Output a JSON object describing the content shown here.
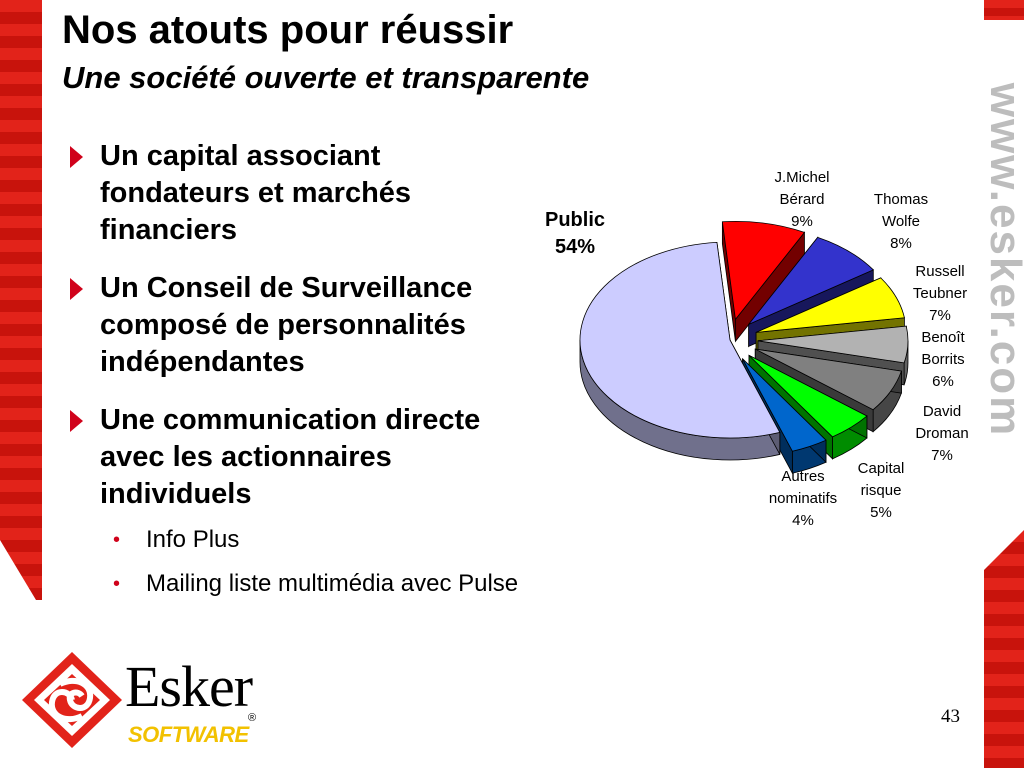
{
  "header": {
    "title": "Nos atouts pour réussir",
    "subtitle": "Une société ouverte et transparente"
  },
  "decoration": {
    "vertical_url": "www.esker.com"
  },
  "bullets": [
    {
      "lines": [
        "Un capital associant",
        "fondateurs et marchés",
        "financiers"
      ]
    },
    {
      "lines": [
        "Un Conseil de Surveillance",
        "composé de personnalités",
        "indépendantes"
      ]
    },
    {
      "lines": [
        "Une communication directe",
        "avec les actionnaires",
        "individuels"
      ]
    }
  ],
  "sub_bullets": [
    "Info Plus",
    "Mailing liste multimédia avec Pulse"
  ],
  "footer": {
    "slide_number": "43",
    "logo_name": "Esker",
    "logo_tagline": "SOFTWARE",
    "logo_registered": "®"
  },
  "colors": {
    "accent": "#d0021b",
    "band": "#e2231a"
  },
  "chart_data": {
    "type": "pie",
    "style": "3d-exploded",
    "slices": [
      {
        "label": [
          "J.Michel",
          "Bérard"
        ],
        "value": 9,
        "display": "9%",
        "color": "#ff0000"
      },
      {
        "label": [
          "Thomas",
          "Wolfe"
        ],
        "value": 8,
        "display": "8%",
        "color": "#3333cc"
      },
      {
        "label": [
          "Russell",
          "Teubner"
        ],
        "value": 7,
        "display": "7%",
        "color": "#ffff00"
      },
      {
        "label": [
          "Benoît",
          "Borrits"
        ],
        "value": 6,
        "display": "6%",
        "color": "#b2b2b2"
      },
      {
        "label": [
          "David",
          "Droman"
        ],
        "value": 7,
        "display": "7%",
        "color": "#808080"
      },
      {
        "label": [
          "Capital",
          "risque"
        ],
        "value": 5,
        "display": "5%",
        "color": "#00ff00"
      },
      {
        "label": [
          "Autres",
          "nominatifs"
        ],
        "value": 4,
        "display": "4%",
        "color": "#0066cc"
      },
      {
        "label": [
          "Public"
        ],
        "value": 54,
        "display": "54%",
        "color": "#ccccff"
      }
    ]
  }
}
